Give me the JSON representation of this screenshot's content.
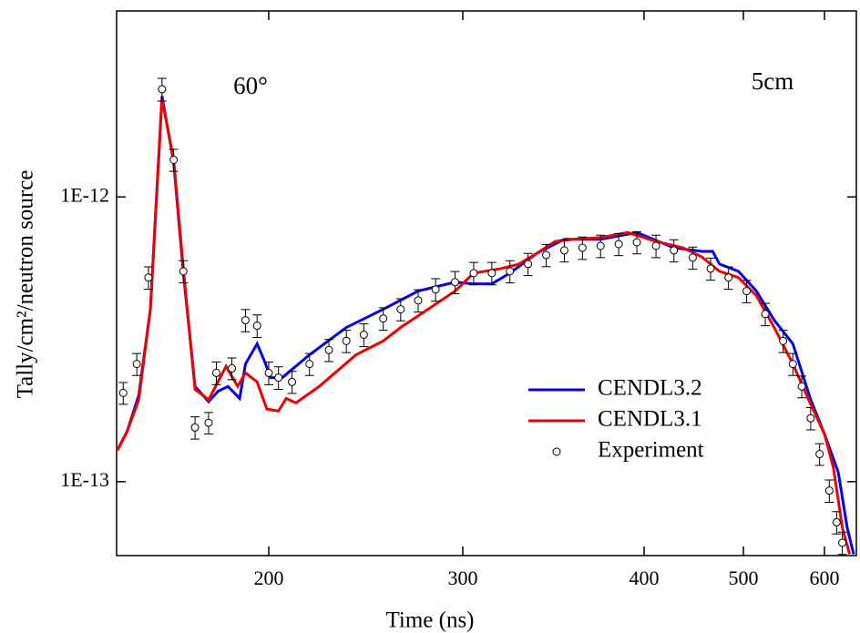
{
  "chart_data": {
    "type": "line",
    "xlabel": "Time (ns)",
    "ylabel": "Tally/cm²/neutron source",
    "annotations": [
      "60°",
      "5cm"
    ],
    "log_y": true,
    "legend": "center right",
    "xlim": [
      122,
      639
    ],
    "xticks": [
      200,
      300,
      400,
      500,
      600
    ],
    "ylim": [
      5.5e-14,
      4.5e-12
    ],
    "yticks": [
      {
        "value": 1e-12,
        "label": "1E-12"
      },
      {
        "value": 1e-13,
        "label": "1E-13"
      }
    ],
    "series": [
      {
        "name": "CENDL3.2",
        "color": "#0000ee",
        "kind": "line",
        "x": [
          122,
          127,
          133,
          139,
          145,
          151,
          156,
          162,
          169,
          174,
          179,
          185,
          188,
          194,
          198,
          201,
          207,
          221,
          240,
          259,
          277,
          296,
          306,
          316,
          326,
          341,
          356,
          376,
          396,
          430,
          458,
          469,
          476,
          495,
          516,
          538,
          561,
          583,
          600,
          617,
          628,
          636
        ],
        "values": [
          1.29e-13,
          1.5e-13,
          2.01e-13,
          4.03e-13,
          2.26e-12,
          1.32e-12,
          5.4e-13,
          2.16e-13,
          1.91e-13,
          2.08e-13,
          2.16e-13,
          1.96e-13,
          2.59e-13,
          3.05e-13,
          2.63e-13,
          2.32e-13,
          2.32e-13,
          2.79e-13,
          3.48e-13,
          4.03e-13,
          4.67e-13,
          5.02e-13,
          4.95e-13,
          4.95e-13,
          5.4e-13,
          6.35e-13,
          7.1e-13,
          7.1e-13,
          7.5e-13,
          6.63e-13,
          6.44e-13,
          6.44e-13,
          5.81e-13,
          5.48e-13,
          4.67e-13,
          3.69e-13,
          3.05e-13,
          1.94e-13,
          1.47e-13,
          1.08e-13,
          6.9e-14,
          5.56e-14
        ]
      },
      {
        "name": "CENDL3.1",
        "color": "#ee0000",
        "kind": "line",
        "x": [
          122,
          127,
          133,
          139,
          145,
          151,
          156,
          162,
          169,
          178,
          184,
          188,
          194,
          199,
          205,
          209,
          214,
          226,
          245,
          259,
          268,
          282,
          296,
          306,
          321,
          331,
          341,
          351,
          361,
          376,
          391,
          412,
          439,
          458,
          476,
          495,
          516,
          538,
          561,
          583,
          600,
          611,
          622,
          631
        ],
        "values": [
          1.29e-13,
          1.5e-13,
          1.94e-13,
          4.03e-13,
          2.21e-12,
          1.35e-12,
          5.6e-13,
          2.11e-13,
          1.94e-13,
          2.54e-13,
          2.16e-13,
          2.41e-13,
          2.24e-13,
          1.8e-13,
          1.77e-13,
          1.96e-13,
          1.89e-13,
          2.16e-13,
          2.79e-13,
          3.12e-13,
          3.48e-13,
          4.03e-13,
          4.67e-13,
          5.4e-13,
          5.6e-13,
          5.81e-13,
          6.35e-13,
          6.98e-13,
          7.1e-13,
          7.2e-13,
          7.5e-13,
          6.98e-13,
          6.63e-13,
          6.16e-13,
          5.48e-13,
          5.21e-13,
          4.5e-13,
          3.48e-13,
          2.59e-13,
          1.87e-13,
          1.47e-13,
          1.12e-13,
          6.9e-14,
          5.56e-14
        ]
      },
      {
        "name": "Experiment",
        "color": "#000000",
        "kind": "points",
        "x": [
          125,
          132,
          138,
          145,
          151,
          156,
          162,
          169,
          173,
          181,
          188,
          194,
          200,
          205,
          212,
          221,
          231,
          240,
          249,
          259,
          268,
          277,
          286,
          296,
          306,
          316,
          326,
          336,
          346,
          356,
          366,
          376,
          386,
          396,
          412,
          430,
          449,
          467,
          485,
          504,
          527,
          549,
          561,
          572,
          583,
          594,
          606,
          615,
          622
        ],
        "values": [
          2.05e-13,
          2.59e-13,
          5.21e-13,
          2.39e-12,
          1.35e-12,
          5.48e-13,
          1.55e-13,
          1.61e-13,
          2.41e-13,
          2.5e-13,
          3.69e-13,
          3.53e-13,
          2.41e-13,
          2.32e-13,
          2.24e-13,
          2.59e-13,
          2.9e-13,
          3.12e-13,
          3.28e-13,
          3.74e-13,
          4.03e-13,
          4.33e-13,
          4.73e-13,
          5.02e-13,
          5.4e-13,
          5.4e-13,
          5.48e-13,
          5.81e-13,
          6.25e-13,
          6.49e-13,
          6.63e-13,
          6.73e-13,
          6.83e-13,
          6.93e-13,
          6.73e-13,
          6.49e-13,
          6.12e-13,
          5.6e-13,
          5.21e-13,
          4.67e-13,
          3.88e-13,
          3.12e-13,
          2.59e-13,
          2.16e-13,
          1.67e-13,
          1.25e-13,
          9.3e-14,
          7.2e-14,
          6.1e-14
        ],
        "errors": [
          1.8e-14,
          2.3e-14,
          4.7e-14,
          2.2e-13,
          1.2e-13,
          4.9e-14,
          1.4e-14,
          1.4e-14,
          2.2e-14,
          2.2e-14,
          3.3e-14,
          3.2e-14,
          2.2e-14,
          2.1e-14,
          2e-14,
          2.3e-14,
          2.6e-14,
          2.8e-14,
          3e-14,
          3.4e-14,
          3.6e-14,
          3.9e-14,
          4.3e-14,
          4.5e-14,
          4.9e-14,
          4.9e-14,
          4.9e-14,
          5.2e-14,
          5.6e-14,
          5.8e-14,
          6e-14,
          6.1e-14,
          6.1e-14,
          6.2e-14,
          6.1e-14,
          5.8e-14,
          5.5e-14,
          5e-14,
          4.7e-14,
          4.2e-14,
          3.5e-14,
          2.8e-14,
          2.3e-14,
          1.9e-14,
          1.5e-14,
          1.1e-14,
          8.4e-15,
          6.5e-15,
          5.5e-15
        ]
      }
    ]
  }
}
